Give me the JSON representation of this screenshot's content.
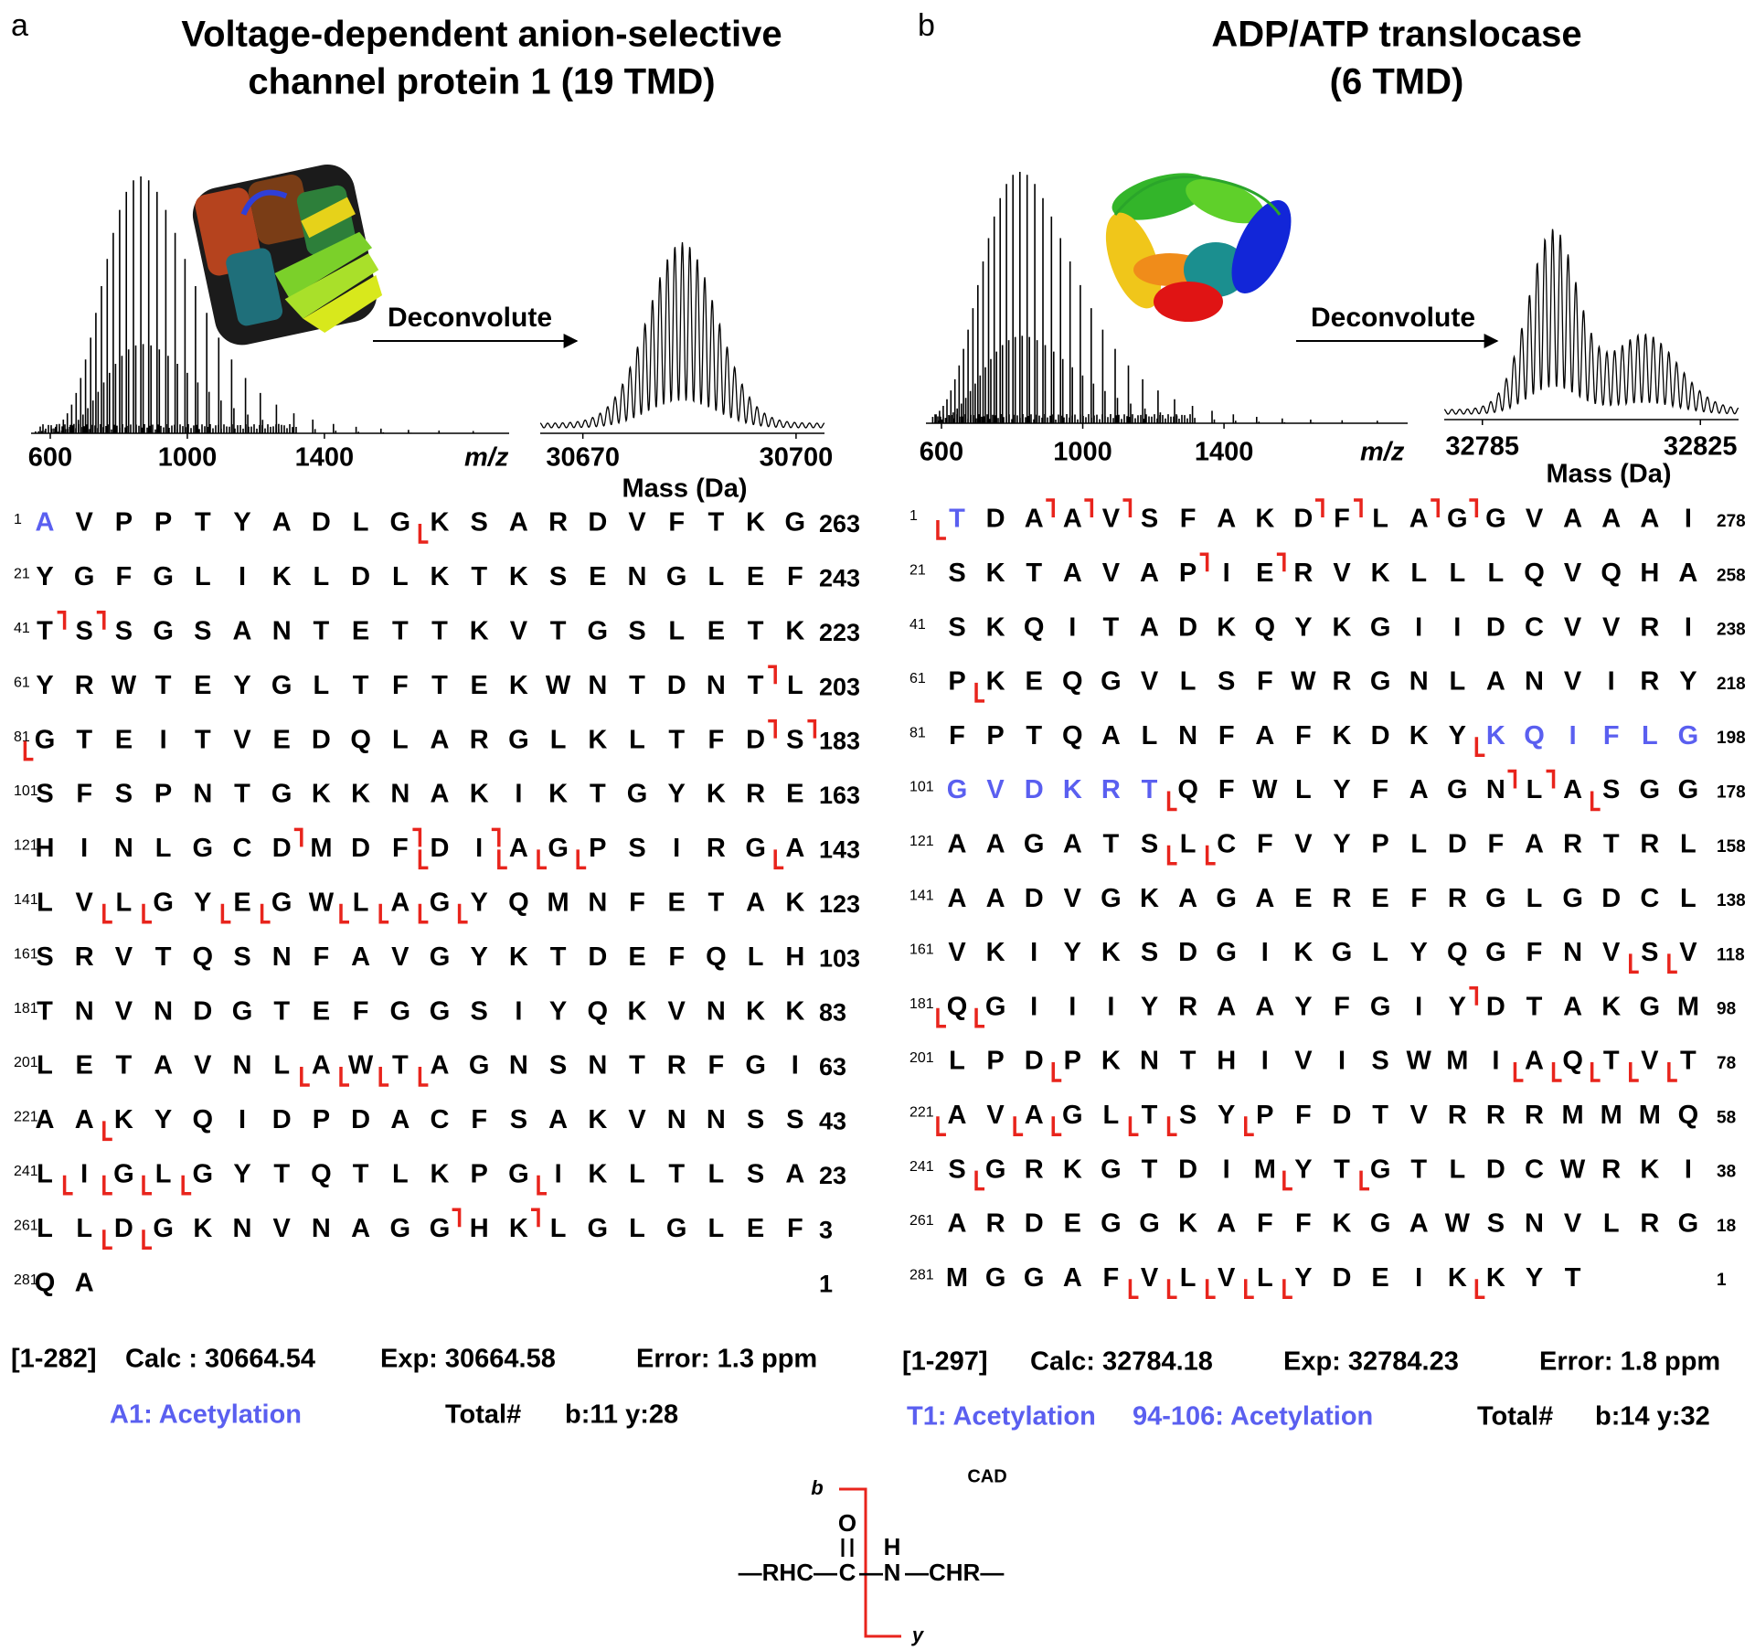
{
  "panels": [
    {
      "label": "a",
      "title": [
        "Voltage-dependent anion-selective",
        "channel protein 1 (19 TMD)"
      ],
      "spectrum": {
        "xlim": [
          544,
          1939
        ],
        "xticks": [
          600,
          1000,
          1400
        ],
        "xlabel": "m/z"
      },
      "arrow_label": "Deconvolute",
      "deconvoluted": {
        "xlim": [
          30664,
          30704
        ],
        "xticks": [
          30670,
          30700
        ],
        "xlabel": "Mass (Da)"
      },
      "sequence": [
        {
          "start": 1,
          "residues": [
            "A",
            "V",
            "P",
            "P",
            "T",
            "Y",
            "A",
            "D",
            "L",
            "G",
            "K",
            "S",
            "A",
            "R",
            "D",
            "V",
            "F",
            "T",
            "K",
            "G"
          ],
          "end": 263,
          "highlight": [
            0
          ],
          "y_marks": [
            10
          ]
        },
        {
          "start": 21,
          "residues": [
            "Y",
            "G",
            "F",
            "G",
            "L",
            "I",
            "K",
            "L",
            "D",
            "L",
            "K",
            "T",
            "K",
            "S",
            "E",
            "N",
            "G",
            "L",
            "E",
            "F"
          ],
          "end": 243
        },
        {
          "start": 41,
          "residues": [
            "T",
            "S",
            "S",
            "G",
            "S",
            "A",
            "N",
            "T",
            "E",
            "T",
            "T",
            "K",
            "V",
            "T",
            "G",
            "S",
            "L",
            "E",
            "T",
            "K"
          ],
          "end": 223,
          "b_marks": [
            0,
            1
          ]
        },
        {
          "start": 61,
          "residues": [
            "Y",
            "R",
            "W",
            "T",
            "E",
            "Y",
            "G",
            "L",
            "T",
            "F",
            "T",
            "E",
            "K",
            "W",
            "N",
            "T",
            "D",
            "N",
            "T",
            "L"
          ],
          "end": 203,
          "b_marks": [
            18
          ]
        },
        {
          "start": 81,
          "residues": [
            "G",
            "T",
            "E",
            "I",
            "T",
            "V",
            "E",
            "D",
            "Q",
            "L",
            "A",
            "R",
            "G",
            "L",
            "K",
            "L",
            "T",
            "F",
            "D",
            "S"
          ],
          "end": 183,
          "y_marks": [
            0
          ],
          "b_marks": [
            18,
            19
          ]
        },
        {
          "start": 101,
          "residues": [
            "S",
            "F",
            "S",
            "P",
            "N",
            "T",
            "G",
            "K",
            "K",
            "N",
            "A",
            "K",
            "I",
            "K",
            "T",
            "G",
            "Y",
            "K",
            "R",
            "E"
          ],
          "end": 163
        },
        {
          "start": 121,
          "residues": [
            "H",
            "I",
            "N",
            "L",
            "G",
            "C",
            "D",
            "M",
            "D",
            "F",
            "D",
            "I",
            "A",
            "G",
            "P",
            "S",
            "I",
            "R",
            "G",
            "A"
          ],
          "end": 143,
          "b_marks": [
            6,
            9,
            11
          ],
          "y_marks": [
            10,
            12,
            13,
            14,
            19
          ]
        },
        {
          "start": 141,
          "residues": [
            "L",
            "V",
            "L",
            "G",
            "Y",
            "E",
            "G",
            "W",
            "L",
            "A",
            "G",
            "Y",
            "Q",
            "M",
            "N",
            "F",
            "E",
            "T",
            "A",
            "K"
          ],
          "end": 123,
          "y_marks": [
            2,
            3,
            5,
            6,
            8,
            9,
            10,
            11
          ]
        },
        {
          "start": 161,
          "residues": [
            "S",
            "R",
            "V",
            "T",
            "Q",
            "S",
            "N",
            "F",
            "A",
            "V",
            "G",
            "Y",
            "K",
            "T",
            "D",
            "E",
            "F",
            "Q",
            "L",
            "H"
          ],
          "end": 103
        },
        {
          "start": 181,
          "residues": [
            "T",
            "N",
            "V",
            "N",
            "D",
            "G",
            "T",
            "E",
            "F",
            "G",
            "G",
            "S",
            "I",
            "Y",
            "Q",
            "K",
            "V",
            "N",
            "K",
            "K"
          ],
          "end": 83
        },
        {
          "start": 201,
          "residues": [
            "L",
            "E",
            "T",
            "A",
            "V",
            "N",
            "L",
            "A",
            "W",
            "T",
            "A",
            "G",
            "N",
            "S",
            "N",
            "T",
            "R",
            "F",
            "G",
            "I"
          ],
          "end": 63,
          "y_marks": [
            7,
            8,
            9,
            10
          ]
        },
        {
          "start": 221,
          "residues": [
            "A",
            "A",
            "K",
            "Y",
            "Q",
            "I",
            "D",
            "P",
            "D",
            "A",
            "C",
            "F",
            "S",
            "A",
            "K",
            "V",
            "N",
            "N",
            "S",
            "S"
          ],
          "end": 43,
          "y_marks": [
            2
          ]
        },
        {
          "start": 241,
          "residues": [
            "L",
            "I",
            "G",
            "L",
            "G",
            "Y",
            "T",
            "Q",
            "T",
            "L",
            "K",
            "P",
            "G",
            "I",
            "K",
            "L",
            "T",
            "L",
            "S",
            "A"
          ],
          "end": 23,
          "y_marks": [
            1,
            2,
            3,
            4,
            13
          ]
        },
        {
          "start": 261,
          "residues": [
            "L",
            "L",
            "D",
            "G",
            "K",
            "N",
            "V",
            "N",
            "A",
            "G",
            "G",
            "H",
            "K",
            "L",
            "G",
            "L",
            "G",
            "L",
            "E",
            "F"
          ],
          "end": 3,
          "y_marks": [
            2,
            3
          ],
          "b_marks": [
            10,
            12
          ]
        },
        {
          "start": 281,
          "residues": [
            "Q",
            "A"
          ],
          "end": 1
        }
      ],
      "summary": [
        "[1-282]",
        "Calc : 30664.54",
        "Exp: 30664.58",
        "Error: 1.3 ppm"
      ],
      "modifications": [
        "A1: Acetylation"
      ],
      "total": [
        "Total#",
        "b:11 y:28"
      ]
    },
    {
      "label": "b",
      "title": [
        "ADP/ATP translocase",
        "(6 TMD)"
      ],
      "spectrum": {
        "xlim": [
          556,
          1920
        ],
        "xticks": [
          600,
          1000,
          1400
        ],
        "xlabel": "m/z"
      },
      "arrow_label": "Deconvolute",
      "deconvoluted": {
        "xlim": [
          32778,
          32832
        ],
        "xticks": [
          32785,
          32825
        ],
        "xlabel": "Mass (Da)"
      },
      "sequence": [
        {
          "start": 1,
          "residues": [
            "T",
            "D",
            "A",
            "A",
            "V",
            "S",
            "F",
            "A",
            "K",
            "D",
            "F",
            "L",
            "A",
            "G",
            "G",
            "V",
            "A",
            "A",
            "A",
            "I"
          ],
          "end": 278,
          "highlight": [
            0
          ],
          "y_marks": [
            0
          ],
          "b_marks": [
            2,
            3,
            4,
            9,
            10,
            12,
            13
          ]
        },
        {
          "start": 21,
          "residues": [
            "S",
            "K",
            "T",
            "A",
            "V",
            "A",
            "P",
            "I",
            "E",
            "R",
            "V",
            "K",
            "L",
            "L",
            "L",
            "Q",
            "V",
            "Q",
            "H",
            "A"
          ],
          "end": 258,
          "b_marks": [
            6,
            8
          ]
        },
        {
          "start": 41,
          "residues": [
            "S",
            "K",
            "Q",
            "I",
            "T",
            "A",
            "D",
            "K",
            "Q",
            "Y",
            "K",
            "G",
            "I",
            "I",
            "D",
            "C",
            "V",
            "V",
            "R",
            "I"
          ],
          "end": 238
        },
        {
          "start": 61,
          "residues": [
            "P",
            "K",
            "E",
            "Q",
            "G",
            "V",
            "L",
            "S",
            "F",
            "W",
            "R",
            "G",
            "N",
            "L",
            "A",
            "N",
            "V",
            "I",
            "R",
            "Y"
          ],
          "end": 218,
          "y_marks": [
            1
          ]
        },
        {
          "start": 81,
          "residues": [
            "F",
            "P",
            "T",
            "Q",
            "A",
            "L",
            "N",
            "F",
            "A",
            "F",
            "K",
            "D",
            "K",
            "Y",
            "K",
            "Q",
            "I",
            "F",
            "L",
            "G"
          ],
          "end": 198,
          "highlight": [
            14,
            15,
            16,
            17,
            18,
            19
          ],
          "y_marks": [
            14
          ]
        },
        {
          "start": 101,
          "residues": [
            "G",
            "V",
            "D",
            "K",
            "R",
            "T",
            "Q",
            "F",
            "W",
            "L",
            "Y",
            "F",
            "A",
            "G",
            "N",
            "L",
            "A",
            "S",
            "G",
            "G"
          ],
          "end": 178,
          "highlight": [
            0,
            1,
            2,
            3,
            4,
            5
          ],
          "y_marks": [
            6,
            17
          ],
          "b_marks": [
            14,
            15
          ]
        },
        {
          "start": 121,
          "residues": [
            "A",
            "A",
            "G",
            "A",
            "T",
            "S",
            "L",
            "C",
            "F",
            "V",
            "Y",
            "P",
            "L",
            "D",
            "F",
            "A",
            "R",
            "T",
            "R",
            "L"
          ],
          "end": 158,
          "y_marks": [
            6,
            7
          ]
        },
        {
          "start": 141,
          "residues": [
            "A",
            "A",
            "D",
            "V",
            "G",
            "K",
            "A",
            "G",
            "A",
            "E",
            "R",
            "E",
            "F",
            "R",
            "G",
            "L",
            "G",
            "D",
            "C",
            "L"
          ],
          "end": 138
        },
        {
          "start": 161,
          "residues": [
            "V",
            "K",
            "I",
            "Y",
            "K",
            "S",
            "D",
            "G",
            "I",
            "K",
            "G",
            "L",
            "Y",
            "Q",
            "G",
            "F",
            "N",
            "V",
            "S",
            "V"
          ],
          "end": 118,
          "y_marks": [
            18,
            19
          ]
        },
        {
          "start": 181,
          "residues": [
            "Q",
            "G",
            "I",
            "I",
            "I",
            "Y",
            "R",
            "A",
            "A",
            "Y",
            "F",
            "G",
            "I",
            "Y",
            "D",
            "T",
            "A",
            "K",
            "G",
            "M"
          ],
          "end": 98,
          "y_marks": [
            0,
            1
          ],
          "b_marks": [
            13
          ]
        },
        {
          "start": 201,
          "residues": [
            "L",
            "P",
            "D",
            "P",
            "K",
            "N",
            "T",
            "H",
            "I",
            "V",
            "I",
            "S",
            "W",
            "M",
            "I",
            "A",
            "Q",
            "T",
            "V",
            "T"
          ],
          "end": 78,
          "y_marks": [
            3,
            15,
            16,
            17,
            18,
            19
          ]
        },
        {
          "start": 221,
          "residues": [
            "A",
            "V",
            "A",
            "G",
            "L",
            "T",
            "S",
            "Y",
            "P",
            "F",
            "D",
            "T",
            "V",
            "R",
            "R",
            "R",
            "M",
            "M",
            "M",
            "Q"
          ],
          "end": 58,
          "y_marks": [
            0,
            2,
            3,
            5,
            6,
            8
          ]
        },
        {
          "start": 241,
          "residues": [
            "S",
            "G",
            "R",
            "K",
            "G",
            "T",
            "D",
            "I",
            "M",
            "Y",
            "T",
            "G",
            "T",
            "L",
            "D",
            "C",
            "W",
            "R",
            "K",
            "I"
          ],
          "end": 38,
          "y_marks": [
            1,
            9,
            11
          ]
        },
        {
          "start": 261,
          "residues": [
            "A",
            "R",
            "D",
            "E",
            "G",
            "G",
            "K",
            "A",
            "F",
            "F",
            "K",
            "G",
            "A",
            "W",
            "S",
            "N",
            "V",
            "L",
            "R",
            "G"
          ],
          "end": 18
        },
        {
          "start": 281,
          "residues": [
            "M",
            "G",
            "G",
            "A",
            "F",
            "V",
            "L",
            "V",
            "L",
            "Y",
            "D",
            "E",
            "I",
            "K",
            "K",
            "Y",
            "T"
          ],
          "end": 1,
          "y_marks": [
            5,
            6,
            7,
            8,
            9,
            14
          ]
        }
      ],
      "summary": [
        "[1-297]",
        "Calc: 32784.18",
        "Exp: 32784.23",
        "Error: 1.8 ppm"
      ],
      "modifications": [
        "T1: Acetylation",
        "94-106: Acetylation"
      ],
      "total": [
        "Total#",
        "b:14 y:32"
      ]
    }
  ],
  "scheme": {
    "b_label": "b",
    "y_label": "y",
    "method": "CAD",
    "oxygen": "O",
    "hydrogen": "H",
    "backbone": [
      "—RHC—",
      "C",
      "—",
      "N",
      "—CHR—"
    ]
  }
}
